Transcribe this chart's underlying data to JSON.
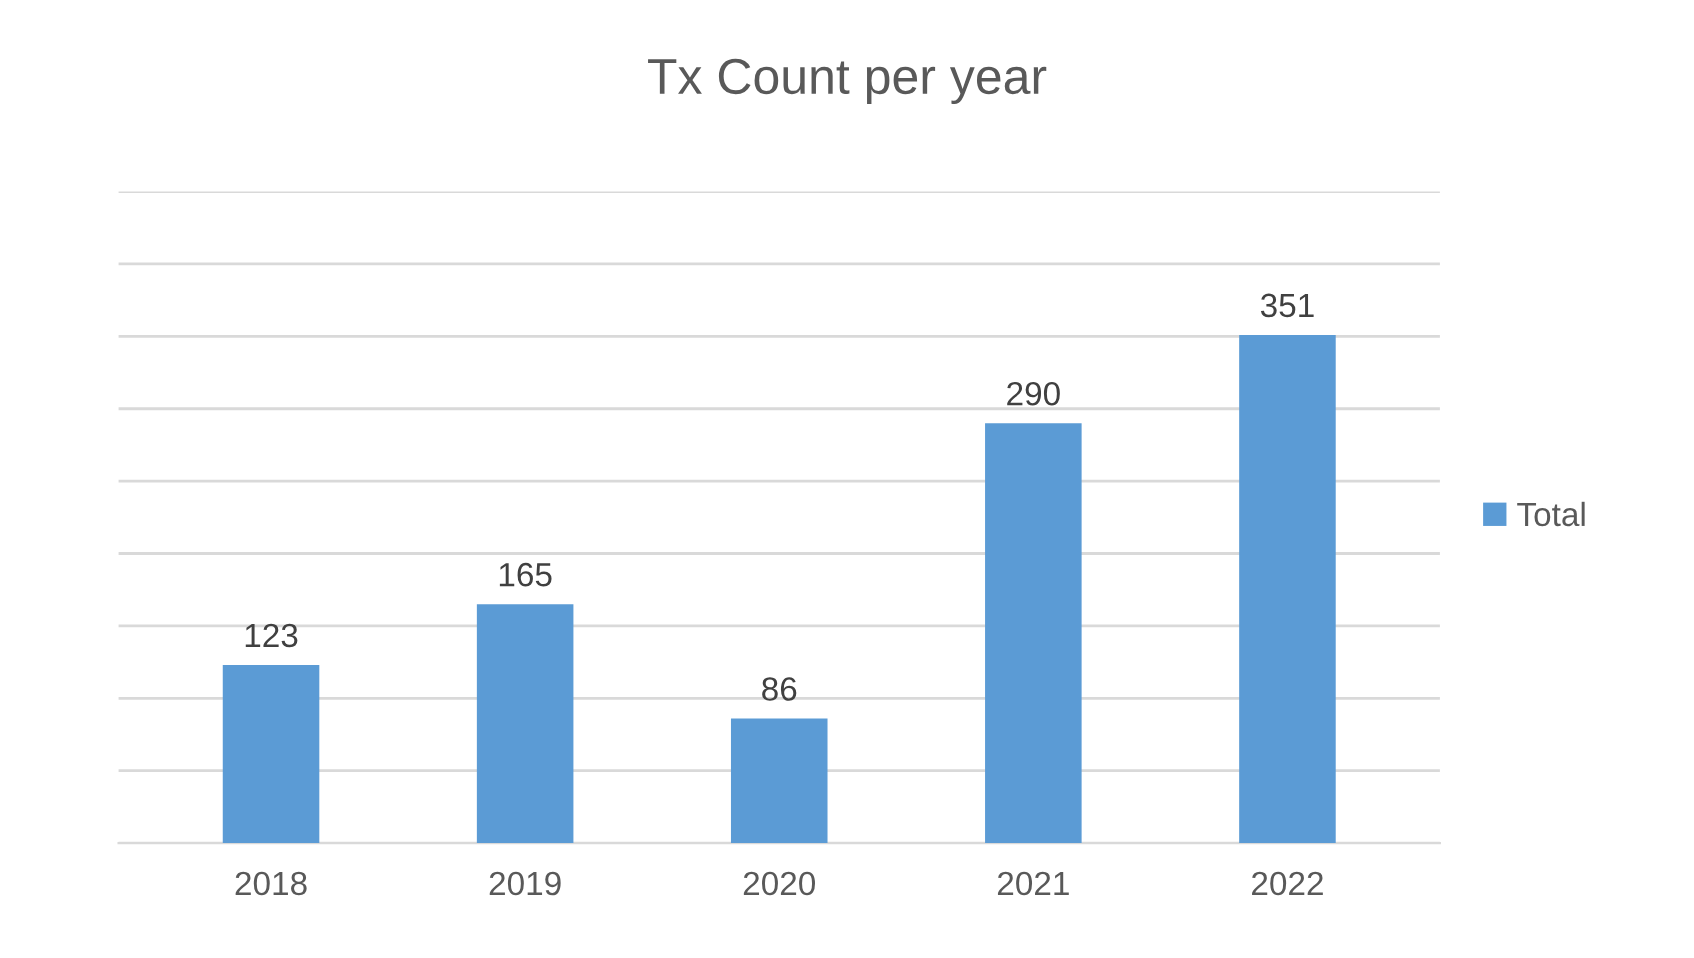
{
  "chart_data": {
    "type": "bar",
    "title": "Tx Count per year",
    "categories": [
      "2018",
      "2019",
      "2020",
      "2021",
      "2022"
    ],
    "series": [
      {
        "name": "Total",
        "color": "#5b9bd5",
        "values": [
          123,
          165,
          86,
          290,
          351
        ]
      }
    ],
    "ylim": [
      0,
      450
    ],
    "yticks": [
      {
        "value": 0,
        "label": null
      },
      {
        "value": 50,
        "label": null
      },
      {
        "value": 100,
        "label": null
      },
      {
        "value": 150,
        "label": null
      },
      {
        "value": 200,
        "label": null
      },
      {
        "value": 250,
        "label": null
      },
      {
        "value": 300,
        "label": null
      },
      {
        "value": 350,
        "label": null
      },
      {
        "value": 400,
        "label": null
      },
      {
        "value": 450,
        "label": null
      }
    ],
    "grid": "y",
    "legend": "right",
    "data_labels": true
  }
}
